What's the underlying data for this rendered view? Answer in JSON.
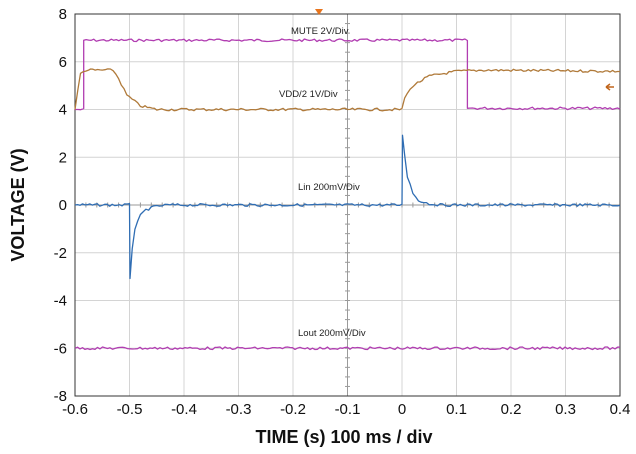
{
  "chart_data": {
    "type": "line",
    "xlabel": "TIME (s) 100 ms / div",
    "ylabel": "VOLTAGE (V)",
    "xlim": [
      -0.6,
      0.4
    ],
    "ylim": [
      -8,
      8
    ],
    "x_ticks": [
      "-0.6",
      "-0.5",
      "-0.4",
      "-0.3",
      "-0.2",
      "-0.1",
      "0",
      "0.1",
      "0.2",
      "0.3",
      "0.4"
    ],
    "y_ticks": [
      "8",
      "6",
      "4",
      "2",
      "0",
      "-2",
      "-4",
      "-6",
      "-8"
    ],
    "grid": true,
    "colors": {
      "mute": "#b13db1",
      "vdd": "#b07a3a",
      "lin": "#2f6db3",
      "lout": "#b13db1",
      "grid": "#d4d4d4",
      "axis": "#333333"
    },
    "series": [
      {
        "id": "mute",
        "label": "MUTE 2V/Div",
        "points": [
          [
            -0.6,
            4.0
          ],
          [
            -0.584,
            4.0
          ],
          [
            -0.584,
            6.9
          ],
          [
            0.12,
            6.9
          ],
          [
            0.12,
            4.05
          ],
          [
            0.4,
            4.05
          ]
        ]
      },
      {
        "id": "vdd",
        "label": "VDD/2    1V/Div",
        "points": [
          [
            -0.6,
            4.0
          ],
          [
            -0.59,
            5.5
          ],
          [
            -0.58,
            5.65
          ],
          [
            -0.55,
            5.65
          ],
          [
            -0.53,
            5.65
          ],
          [
            -0.52,
            5.3
          ],
          [
            -0.505,
            4.6
          ],
          [
            -0.48,
            4.15
          ],
          [
            -0.45,
            4.0
          ],
          [
            -0.3,
            4.0
          ],
          [
            -0.1,
            4.0
          ],
          [
            0.0,
            4.0
          ],
          [
            0.005,
            4.5
          ],
          [
            0.02,
            5.0
          ],
          [
            0.05,
            5.4
          ],
          [
            0.1,
            5.6
          ],
          [
            0.15,
            5.65
          ],
          [
            0.4,
            5.6
          ]
        ]
      },
      {
        "id": "lin",
        "label": "Lin    200mV/Div",
        "points": [
          [
            -0.6,
            0.0
          ],
          [
            -0.5,
            0.0
          ],
          [
            -0.499,
            -3.05
          ],
          [
            -0.495,
            -1.8
          ],
          [
            -0.49,
            -1.0
          ],
          [
            -0.48,
            -0.45
          ],
          [
            -0.47,
            -0.2
          ],
          [
            -0.45,
            -0.05
          ],
          [
            -0.43,
            0.0
          ],
          [
            0.0,
            0.0
          ],
          [
            0.001,
            2.95
          ],
          [
            0.005,
            2.1
          ],
          [
            0.01,
            1.2
          ],
          [
            0.02,
            0.5
          ],
          [
            0.03,
            0.2
          ],
          [
            0.05,
            0.05
          ],
          [
            0.07,
            0.0
          ],
          [
            0.4,
            0.0
          ]
        ]
      },
      {
        "id": "lout",
        "label": "Lout    200mV/Div",
        "points": [
          [
            -0.6,
            -6.0
          ],
          [
            0.4,
            -6.0
          ]
        ]
      }
    ]
  }
}
